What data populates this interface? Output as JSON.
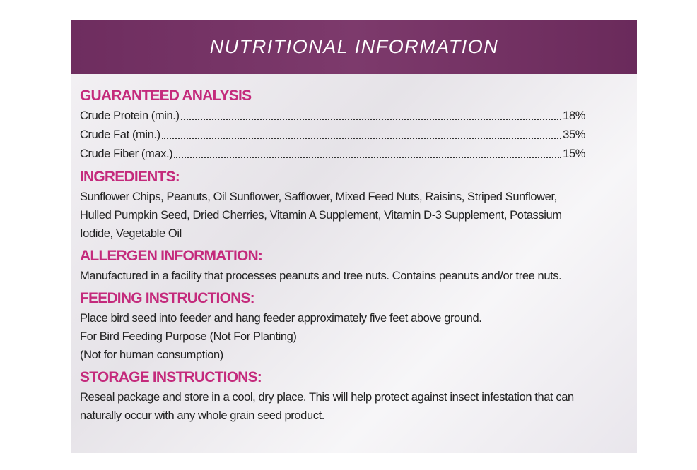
{
  "header": {
    "title": "NUTRITIONAL INFORMATION"
  },
  "sections": [
    {
      "heading": "GUARANTEED ANALYSIS",
      "rows": [
        {
          "label": "Crude Protein (min.)",
          "value": "18%"
        },
        {
          "label": "Crude Fat (min.)",
          "value": "35%"
        },
        {
          "label": "Crude Fiber (max.)",
          "value": "15%"
        }
      ]
    },
    {
      "heading": "INGREDIENTS:",
      "lines": [
        "Sunflower Chips, Peanuts, Oil Sunflower, Safflower, Mixed Feed Nuts, Raisins, Striped Sunflower,",
        "Hulled Pumpkin Seed, Dried Cherries, Vitamin A Supplement, Vitamin D-3 Supplement, Potassium",
        "Iodide, Vegetable Oil"
      ]
    },
    {
      "heading": "ALLERGEN INFORMATION:",
      "lines": [
        "Manufactured in a facility that processes peanuts and tree nuts. Contains peanuts and/or tree nuts."
      ]
    },
    {
      "heading": "FEEDING INSTRUCTIONS:",
      "lines": [
        "Place bird seed into feeder and hang feeder approximately five feet above ground.",
        "For Bird Feeding Purpose (Not For Planting)",
        "(Not for human consumption)"
      ]
    },
    {
      "heading": "STORAGE INSTRUCTIONS:",
      "lines": [
        "Reseal package and store in a cool, dry place. This will help protect against insect infestation that can",
        "naturally occur with any whole grain seed product."
      ]
    }
  ]
}
